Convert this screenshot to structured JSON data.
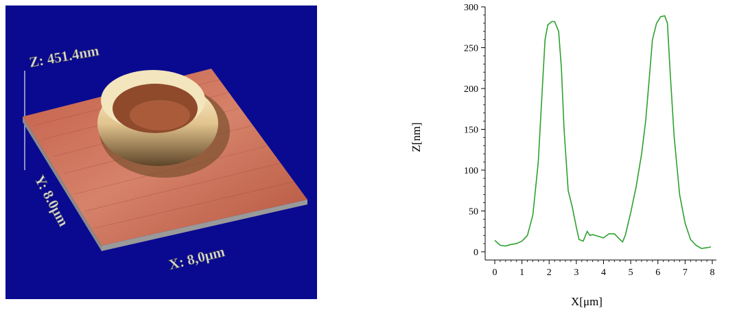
{
  "afm": {
    "z_label": "Z: 451.4nm",
    "y_label": "Y: 8.0μm",
    "x_label": "X: 8,0μm",
    "colors": {
      "background": "#0a0a90",
      "surface": "#c96a52",
      "ring_highlight": "#fff3c8",
      "ring_shadow": "#6b4a25"
    }
  },
  "chart_data": {
    "type": "line",
    "xlabel": "X[μm]",
    "ylabel": "Z[nm]",
    "xlim": [
      0,
      8
    ],
    "ylim": [
      0,
      300
    ],
    "xticks": [
      0,
      1,
      2,
      3,
      4,
      5,
      6,
      7,
      8
    ],
    "yticks": [
      0,
      50,
      100,
      150,
      200,
      250,
      300
    ],
    "grid": false,
    "line_color": "#2ca02c",
    "series": [
      {
        "x": [
          0,
          0.2,
          0.4,
          0.6,
          0.8,
          1.0,
          1.2,
          1.4,
          1.6,
          1.75,
          1.85,
          1.95,
          2.1,
          2.2,
          2.35,
          2.45,
          2.55,
          2.7,
          2.85,
          3.0,
          3.1,
          3.25,
          3.4,
          3.5,
          3.6,
          3.8,
          4.0,
          4.2,
          4.4,
          4.6,
          4.7,
          4.8,
          5.0,
          5.2,
          5.4,
          5.55,
          5.7,
          5.8,
          5.95,
          6.1,
          6.25,
          6.35,
          6.45,
          6.6,
          6.8,
          7.0,
          7.2,
          7.4,
          7.6,
          7.8,
          7.95
        ],
        "y": [
          14,
          8,
          7,
          9,
          10,
          13,
          20,
          45,
          110,
          200,
          260,
          278,
          282,
          282,
          270,
          225,
          150,
          75,
          55,
          30,
          15,
          13,
          25,
          20,
          21,
          19,
          17,
          22,
          22,
          15,
          12,
          20,
          48,
          80,
          120,
          160,
          220,
          260,
          280,
          288,
          289,
          280,
          220,
          140,
          70,
          35,
          15,
          8,
          4,
          5,
          6
        ]
      }
    ]
  }
}
